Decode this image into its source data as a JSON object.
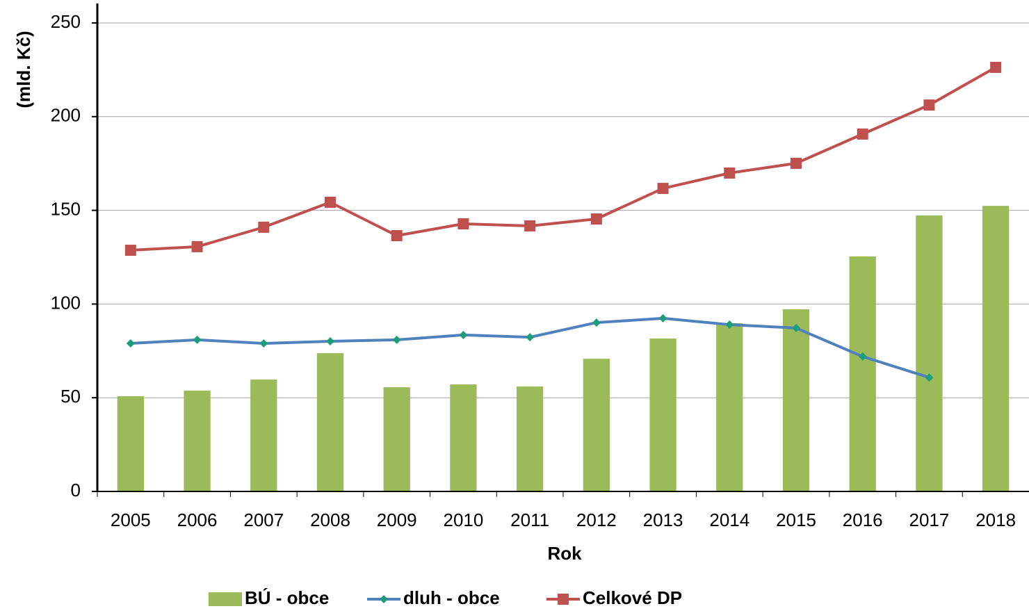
{
  "chart_data": {
    "type": "combo",
    "x_label": "Rok",
    "y_label": "(mld. Kč)",
    "categories": [
      "2005",
      "2006",
      "2007",
      "2008",
      "2009",
      "2010",
      "2011",
      "2012",
      "2013",
      "2014",
      "2015",
      "2016",
      "2017",
      "2018"
    ],
    "series": [
      {
        "name": "BÚ - obce",
        "type": "bar",
        "color": "#9bbb59",
        "values": [
          50.8,
          53.8,
          59.7,
          73.8,
          55.6,
          57.1,
          56.0,
          70.8,
          81.6,
          89.8,
          97.2,
          125.4,
          147.3,
          152.4
        ]
      },
      {
        "name": "dluh - obce",
        "type": "line",
        "marker": "diamond",
        "color": "#4f81bd",
        "marker_color": "#1f9d7a",
        "values": [
          79.0,
          80.9,
          79.0,
          80.1,
          80.9,
          83.5,
          82.3,
          90.1,
          92.4,
          89.0,
          87.2,
          72.0,
          60.8,
          null
        ]
      },
      {
        "name": "Celkové DP",
        "type": "line",
        "marker": "square",
        "color": "#c0504d",
        "marker_color": "#c0504d",
        "values": [
          128.7,
          130.6,
          141.0,
          154.3,
          136.5,
          142.8,
          141.7,
          145.4,
          161.7,
          169.9,
          175.1,
          190.7,
          206.2,
          226.3
        ]
      }
    ],
    "ylim": [
      0,
      250
    ],
    "yticks": [
      0,
      50,
      100,
      150,
      200,
      250
    ],
    "grid": true,
    "legend": "bottom"
  }
}
